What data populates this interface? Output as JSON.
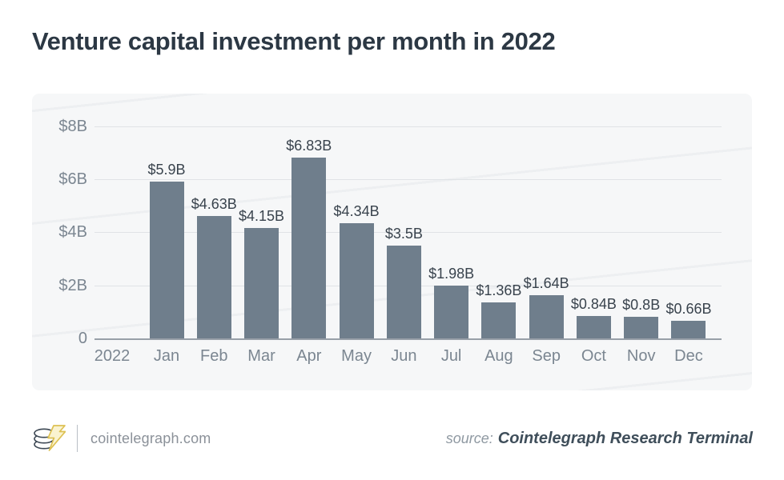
{
  "title": "Venture capital investment per month in 2022",
  "chart_data": {
    "type": "bar",
    "title": "Venture capital investment per month in 2022",
    "categories": [
      "Jan",
      "Feb",
      "Mar",
      "Apr",
      "May",
      "Jun",
      "Jul",
      "Aug",
      "Sep",
      "Oct",
      "Nov",
      "Dec"
    ],
    "values": [
      5.9,
      4.63,
      4.15,
      6.83,
      4.34,
      3.5,
      1.98,
      1.36,
      1.64,
      0.84,
      0.8,
      0.66
    ],
    "bar_labels": [
      "$5.9B",
      "$4.63B",
      "$4.15B",
      "$6.83B",
      "$4.34B",
      "$3.5B",
      "$1.98B",
      "$1.36B",
      "$1.64B",
      "$0.84B",
      "$0.8B",
      "$0.66B"
    ],
    "x_origin_label": "2022",
    "y_ticks": [
      {
        "value": 8,
        "label": "$8B"
      },
      {
        "value": 6,
        "label": "$6B"
      },
      {
        "value": 4,
        "label": "$4B"
      },
      {
        "value": 2,
        "label": "$2B"
      },
      {
        "value": 0,
        "label": "0"
      }
    ],
    "ylim": [
      0,
      8.8
    ],
    "grid": true,
    "legend_position": "none",
    "bar_color": "#6f7e8c"
  },
  "footer": {
    "site": "cointelegraph.com",
    "source_prefix": "source:",
    "source_name": "Cointelegraph Research Terminal",
    "logo": "cointelegraph-coin-stack-with-lightning-bolt"
  },
  "colors": {
    "title_text": "#2c3844",
    "axis_text": "#7b8691",
    "value_text": "#39434d",
    "bar": "#6f7e8c",
    "gridline": "#e0e3e6",
    "baseline": "#98a0a8",
    "panel_background": "#f6f7f8",
    "page_background": "#ffffff",
    "footer_site_text": "#8b9199",
    "source_name_text": "#3f4e5a",
    "logo_bolt_yellow": "#e3c95c"
  }
}
